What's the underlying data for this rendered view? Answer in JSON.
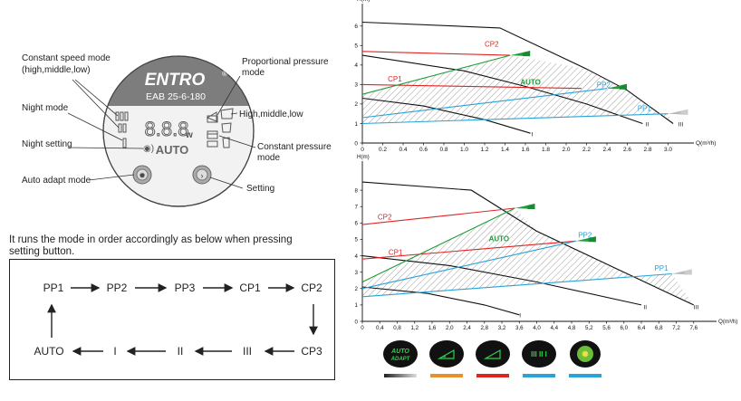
{
  "controller": {
    "brand": "ENTRO",
    "brand_mark": "®",
    "model": "EAB 25-6-180",
    "display_digits": "8.8.8",
    "display_unit": "w",
    "auto_label": "AUTO",
    "labels": {
      "constant_speed": [
        "Constant speed mode",
        "(high,middle,low)"
      ],
      "night_mode": "Night mode",
      "night_setting": "Night setting",
      "auto_adapt": "Auto adapt mode",
      "proportional": [
        "Proportional pressure",
        "mode"
      ],
      "high_mid_low": "High,middle,low",
      "constant_pressure": [
        "Constant pressure",
        "mode"
      ],
      "setting": "Setting"
    }
  },
  "sequence": {
    "caption_lines": [
      "It runs the mode in order accordingly as below when pressing",
      "setting button."
    ],
    "steps": [
      "PP1",
      "PP2",
      "PP3",
      "CP1",
      "CP2",
      "CP3",
      "III",
      "II",
      "I",
      "AUTO"
    ]
  },
  "chart_data": [
    {
      "type": "line",
      "xlabel": "Q(m³/h)",
      "ylabel": "H(m)",
      "xlim": [
        0,
        3.2
      ],
      "ylim": [
        0,
        6.5
      ],
      "xticks": [
        "0",
        "0.2",
        "0.4",
        "0.6",
        "0.8",
        "1.0",
        "1.2",
        "1.4",
        "1.6",
        "1.8",
        "2.0",
        "2.2",
        "2.4",
        "2.6",
        "2.8",
        "3.0"
      ],
      "yticks": [
        "0",
        "1",
        "2",
        "3",
        "4",
        "5",
        "6"
      ],
      "annotations": [
        "CP2",
        "CP1",
        "AUTO",
        "PP2",
        "PP1",
        "I",
        "II",
        "III"
      ],
      "series": [
        {
          "name": "III",
          "color": "#111111",
          "x": [
            0,
            1.35,
            2.2,
            2.6,
            3.05
          ],
          "y": [
            6.2,
            5.9,
            3.8,
            2.7,
            1.0
          ]
        },
        {
          "name": "II",
          "color": "#111111",
          "x": [
            0,
            1.0,
            1.6,
            2.2,
            2.75
          ],
          "y": [
            4.5,
            3.7,
            2.9,
            2.0,
            1.0
          ]
        },
        {
          "name": "I",
          "color": "#111111",
          "x": [
            0,
            0.6,
            1.2,
            1.65
          ],
          "y": [
            2.3,
            1.9,
            1.2,
            0.5
          ]
        },
        {
          "name": "CP2",
          "color": "#e02424",
          "x": [
            0,
            1.45
          ],
          "y": [
            4.7,
            4.5
          ]
        },
        {
          "name": "CP1",
          "color": "#e02424",
          "x": [
            0,
            2.15
          ],
          "y": [
            3.0,
            2.8
          ]
        },
        {
          "name": "AUTO",
          "color": "#1f9e3a",
          "x": [
            0,
            1.45
          ],
          "y": [
            2.5,
            4.5
          ]
        },
        {
          "name": "PP2",
          "color": "#29a3d8",
          "x": [
            0,
            2.4
          ],
          "y": [
            1.3,
            2.8
          ]
        },
        {
          "name": "PP1",
          "color": "#29a3d8",
          "x": [
            0,
            3.0
          ],
          "y": [
            1.0,
            1.5
          ]
        }
      ]
    },
    {
      "type": "line",
      "xlabel": "Q(m³/h)",
      "ylabel": "H(m)",
      "xlim": [
        0,
        8.0
      ],
      "ylim": [
        0,
        9
      ],
      "xticks": [
        "0",
        "0,4",
        "0,8",
        "1,2",
        "1,6",
        "2,0",
        "2,4",
        "2,8",
        "3,2",
        "3,6",
        "4,0",
        "4,4",
        "4,8",
        "5,2",
        "5,6",
        "6,0",
        "6,4",
        "6,8",
        "7,2",
        "7,6"
      ],
      "yticks": [
        "0",
        "1",
        "2",
        "3",
        "4",
        "5",
        "6",
        "7",
        "8"
      ],
      "annotations": [
        "CP2",
        "CP1",
        "AUTO",
        "PP2",
        "PP1",
        "I",
        "II",
        "III"
      ],
      "series": [
        {
          "name": "III",
          "color": "#111111",
          "x": [
            0,
            2.5,
            4.0,
            6.0,
            7.6
          ],
          "y": [
            8.5,
            8.0,
            5.5,
            3.0,
            1.0
          ]
        },
        {
          "name": "II",
          "color": "#111111",
          "x": [
            0,
            2.0,
            4.0,
            6.4
          ],
          "y": [
            4.0,
            3.4,
            2.4,
            1.0
          ]
        },
        {
          "name": "I",
          "color": "#111111",
          "x": [
            0,
            1.5,
            2.8,
            3.6
          ],
          "y": [
            2.1,
            1.7,
            1.0,
            0.4
          ]
        },
        {
          "name": "CP2",
          "color": "#e02424",
          "x": [
            0,
            3.5
          ],
          "y": [
            5.9,
            6.9
          ]
        },
        {
          "name": "CP1",
          "color": "#e02424",
          "x": [
            0,
            4.9
          ],
          "y": [
            3.8,
            4.9
          ]
        },
        {
          "name": "AUTO",
          "color": "#1f9e3a",
          "x": [
            0,
            3.5
          ],
          "y": [
            2.4,
            6.9
          ]
        },
        {
          "name": "PP2",
          "color": "#29a3d8",
          "x": [
            0,
            4.9
          ],
          "y": [
            2.0,
            4.9
          ]
        },
        {
          "name": "PP1",
          "color": "#29a3d8",
          "x": [
            0,
            7.1
          ],
          "y": [
            1.5,
            2.9
          ]
        }
      ]
    }
  ],
  "legend_buttons": [
    {
      "name": "auto-adapt",
      "label_top": "AUTO",
      "label_bottom": "ADAPT",
      "bar_color": "gradient"
    },
    {
      "name": "proportional-pressure",
      "bar_color": "#e8902a"
    },
    {
      "name": "constant-pressure",
      "bar_color": "#e02424"
    },
    {
      "name": "constant-speed",
      "bar_color": "#29a3d8"
    },
    {
      "name": "night-mode",
      "bar_color": "#29a3d8"
    }
  ]
}
